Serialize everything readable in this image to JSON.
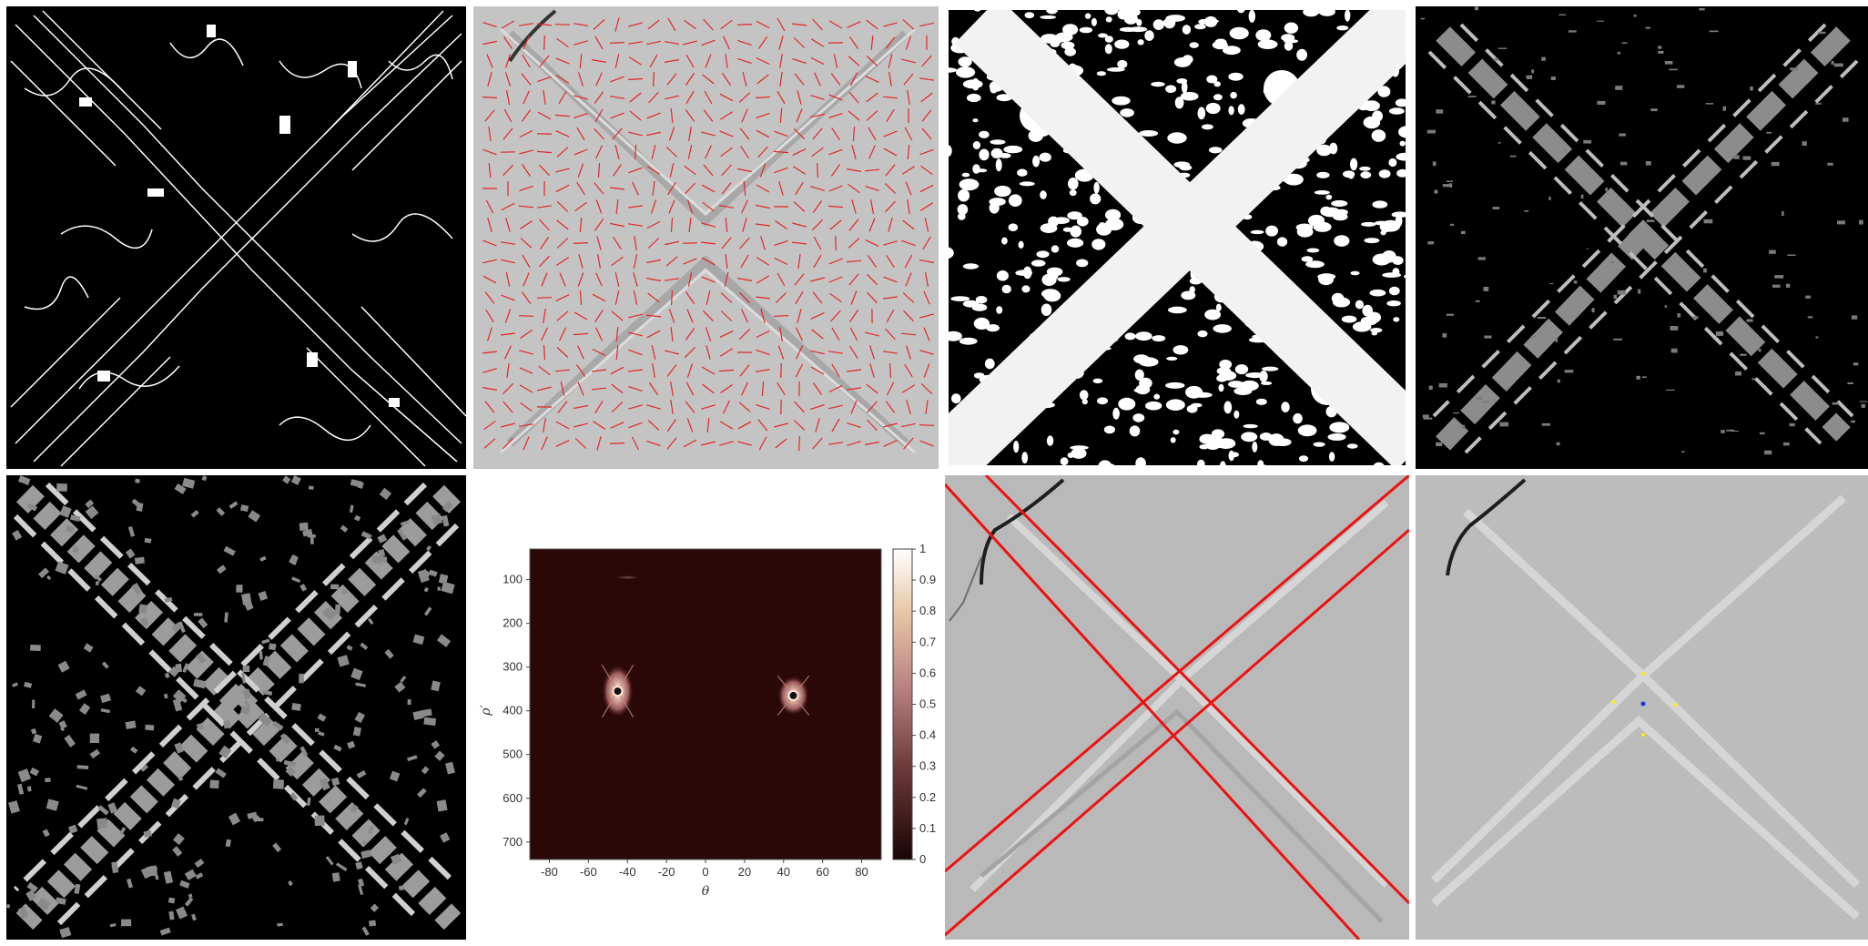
{
  "panels": [
    {
      "name": "edge-map",
      "background": "#000000"
    },
    {
      "name": "orientation-field",
      "background": "#c4c4c4",
      "vector_color": "#e32626"
    },
    {
      "name": "binary-ridge-map",
      "background": "#000000"
    },
    {
      "name": "gray-edge-map",
      "background": "#000000"
    },
    {
      "name": "textured-patch-map",
      "background": "#000000"
    },
    {
      "name": "hough-accumulator-plot",
      "background": "#ffffff"
    },
    {
      "name": "detected-lines-overlay",
      "background": "#b9b9b9",
      "line_color": "#ee1111"
    },
    {
      "name": "intersection-points-overlay",
      "background": "#bcbcbc",
      "point_colors": [
        "#f2ee22",
        "#2233dd"
      ]
    }
  ],
  "chart_data": {
    "type": "heatmap",
    "xlabel": "θ",
    "ylabel": "ρ′",
    "xlim": [
      -90,
      90
    ],
    "ylim": [
      30,
      740
    ],
    "x_ticks": [
      "-80",
      "-60",
      "-40",
      "-20",
      "0",
      "20",
      "40",
      "60",
      "80"
    ],
    "y_ticks": [
      "100",
      "200",
      "300",
      "400",
      "500",
      "600",
      "700"
    ],
    "colorbar_ticks": [
      "0",
      "0.1",
      "0.2",
      "0.3",
      "0.4",
      "0.5",
      "0.6",
      "0.7",
      "0.8",
      "0.9",
      "1"
    ],
    "colorbar_range": [
      0,
      1
    ],
    "background_color": "#2a0808",
    "clusters": [
      {
        "theta_center": -45,
        "rho_center": 355,
        "theta_width": 16,
        "rho_height": 120,
        "peak_value": 1.0
      },
      {
        "theta_center": 45,
        "rho_center": 365,
        "theta_width": 16,
        "rho_height": 90,
        "peak_value": 1.0
      },
      {
        "theta_center": -40,
        "rho_center": 95,
        "theta_width": 12,
        "rho_height": 8,
        "peak_value": 0.3
      }
    ]
  }
}
